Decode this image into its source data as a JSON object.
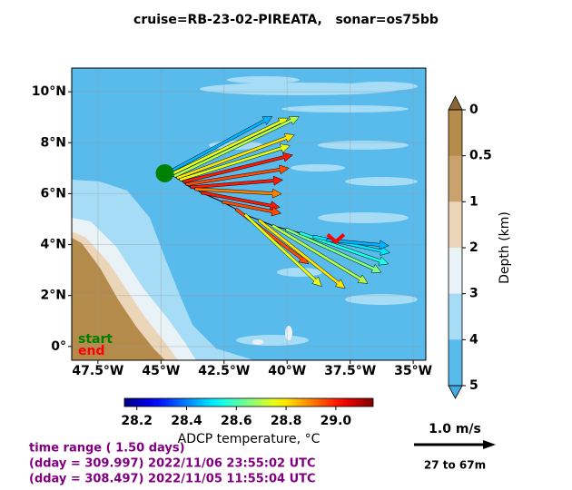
{
  "chart_data": {
    "type": "map",
    "title": "cruise=RB-23-02-PIREATA,   sonar=os75bb",
    "xlim": [
      -48.54,
      -34.5
    ],
    "ylim": [
      -0.54,
      10.93
    ],
    "xticks": [
      {
        "value": -47.5,
        "label": "47.5°W"
      },
      {
        "value": -45,
        "label": "45°W"
      },
      {
        "value": -42.5,
        "label": "42.5°W"
      },
      {
        "value": -40,
        "label": "40°W"
      },
      {
        "value": -37.5,
        "label": "37.5°W"
      },
      {
        "value": -35,
        "label": "35°W"
      }
    ],
    "yticks": [
      {
        "value": 0,
        "label": "0°"
      },
      {
        "value": 2,
        "label": "2°N"
      },
      {
        "value": 4,
        "label": "4°N"
      },
      {
        "value": 6,
        "label": "6°N"
      },
      {
        "value": 8,
        "label": "8°N"
      },
      {
        "value": 10,
        "label": "10°N"
      }
    ],
    "grid": true,
    "vectors": {
      "lon": [
        -44.73,
        -44.62,
        -44.48,
        -44.37,
        -44.26,
        -44.12,
        -44.01,
        -43.83,
        -43.65,
        -43.4,
        -42.57,
        -42.03,
        -41.67,
        -41.13,
        -40.59,
        -40.05,
        -39.51,
        -38.97,
        -38.43
      ],
      "lat": [
        6.82,
        6.75,
        6.68,
        6.61,
        6.54,
        6.46,
        6.36,
        6.25,
        6.18,
        6.04,
        5.68,
        5.39,
        5.18,
        4.97,
        4.75,
        4.61,
        4.46,
        4.32,
        4.18
      ],
      "u": [
        1.28,
        1.44,
        1.53,
        1.44,
        1.35,
        1.34,
        1.26,
        1.13,
        1.06,
        0.96,
        0.72,
        0.89,
        0.94,
        1.06,
        1.17,
        1.17,
        1.09,
        0.94,
        0.76
      ],
      "v": [
        0.69,
        0.69,
        0.73,
        0.53,
        0.42,
        0.33,
        0.2,
        0.09,
        -0.06,
        -0.18,
        -0.14,
        -0.67,
        -0.88,
        -0.84,
        -0.71,
        -0.53,
        -0.38,
        -0.2,
        -0.07
      ],
      "temperature": [
        28.45,
        28.75,
        28.7,
        28.8,
        28.75,
        29.0,
        28.95,
        29.0,
        28.9,
        29.0,
        28.95,
        28.95,
        28.75,
        28.8,
        28.7,
        28.65,
        28.55,
        28.5,
        28.45
      ]
    },
    "start_point": {
      "lon": -44.85,
      "lat": 6.8,
      "color": "#008000",
      "label": "start"
    },
    "end_point": {
      "lon": -38.07,
      "lat": 4.18,
      "color": "#ff0000",
      "label": "end"
    },
    "temperature_colorbar": {
      "label": "ADCP temperature, °C",
      "lim": [
        28.15,
        29.15
      ],
      "ticks": [
        28.2,
        28.4,
        28.6,
        28.8,
        {
          "value": 29.0,
          "label": "29.0"
        }
      ]
    },
    "depth_colorbar": {
      "label": "Depth (km)",
      "levels": [
        0,
        0.5,
        1,
        2,
        3,
        4,
        5
      ],
      "colors": [
        "#b58b4c",
        "#caa26e",
        "#ecd6ba",
        "#e9f2f7",
        "#a6dcf5",
        "#59bbec"
      ],
      "extend_colors": [
        "#8a6637",
        "#45abe5"
      ]
    },
    "quiver_key": {
      "value": 1.0,
      "label": "1.0 m/s"
    },
    "depth_range": "27 to 67m",
    "time_info": [
      "time range ( 1.50 days)",
      "(dday = 309.997) 2022/11/06 23:55:02 UTC",
      "(dday = 308.497) 2022/11/05 11:55:04 UTC"
    ]
  }
}
